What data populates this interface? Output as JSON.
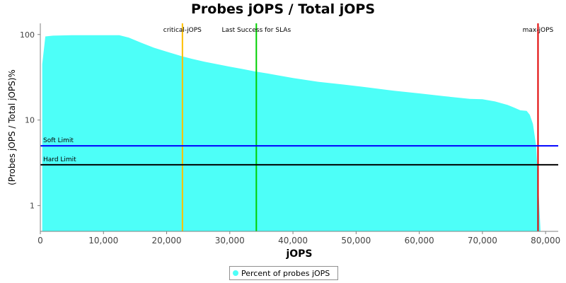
{
  "chart_data": {
    "type": "area",
    "title": "Probes jOPS / Total jOPS",
    "xlabel": "jOPS",
    "ylabel": "(Probes jOPS / Total jOPS)%",
    "x_ticks": [
      "0",
      "10,000",
      "20,000",
      "30,000",
      "40,000",
      "50,000",
      "60,000",
      "70,000",
      "80,000"
    ],
    "x_tick_values": [
      0,
      10000,
      20000,
      30000,
      40000,
      50000,
      60000,
      70000,
      80000
    ],
    "y_ticks": [
      "100",
      "10",
      "1"
    ],
    "y_tick_values": [
      100,
      10,
      1
    ],
    "y_scale": "log",
    "xlim": [
      0,
      82000
    ],
    "ylim": [
      0.5,
      135
    ],
    "series": [
      {
        "name": "Percent of probes jOPS",
        "color": "#4dfff8",
        "x": [
          300,
          800,
          2000,
          5000,
          8000,
          12500,
          14000,
          16000,
          18000,
          20000,
          22300,
          24000,
          26000,
          28000,
          30000,
          32000,
          34000,
          36000,
          40000,
          44000,
          48000,
          52000,
          56000,
          60000,
          64000,
          68000,
          70000,
          72000,
          74000,
          75000,
          76000,
          77000,
          77500,
          78000,
          78500,
          78800,
          79200,
          80000,
          82000
        ],
        "y": [
          45,
          95,
          97,
          98,
          98,
          98,
          92,
          80,
          70,
          63,
          56,
          52,
          48,
          45,
          42,
          39.5,
          37,
          35,
          31,
          28,
          26,
          24,
          22,
          20.5,
          19,
          17.7,
          17.5,
          16.5,
          15,
          14,
          13,
          12.8,
          11.5,
          9,
          5,
          2,
          0.5,
          0.5,
          0.5
        ]
      }
    ],
    "reference_lines": [
      {
        "label": "critical-jOPS",
        "orientation": "vertical",
        "value": 22500,
        "color": "#ffbf00"
      },
      {
        "label": "Last Success for SLAs",
        "orientation": "vertical",
        "value": 34200,
        "color": "#00d000"
      },
      {
        "label": "max-jOPS",
        "orientation": "vertical",
        "value": 78800,
        "color": "#e00000"
      },
      {
        "label": "Soft Limit",
        "orientation": "horizontal",
        "value": 5,
        "color": "#0000ff"
      },
      {
        "label": "Hard Limit",
        "orientation": "horizontal",
        "value": 3,
        "color": "#000000"
      }
    ],
    "legend": {
      "position": "bottom-center",
      "entries": [
        "Percent of probes jOPS"
      ]
    },
    "grid": false
  }
}
